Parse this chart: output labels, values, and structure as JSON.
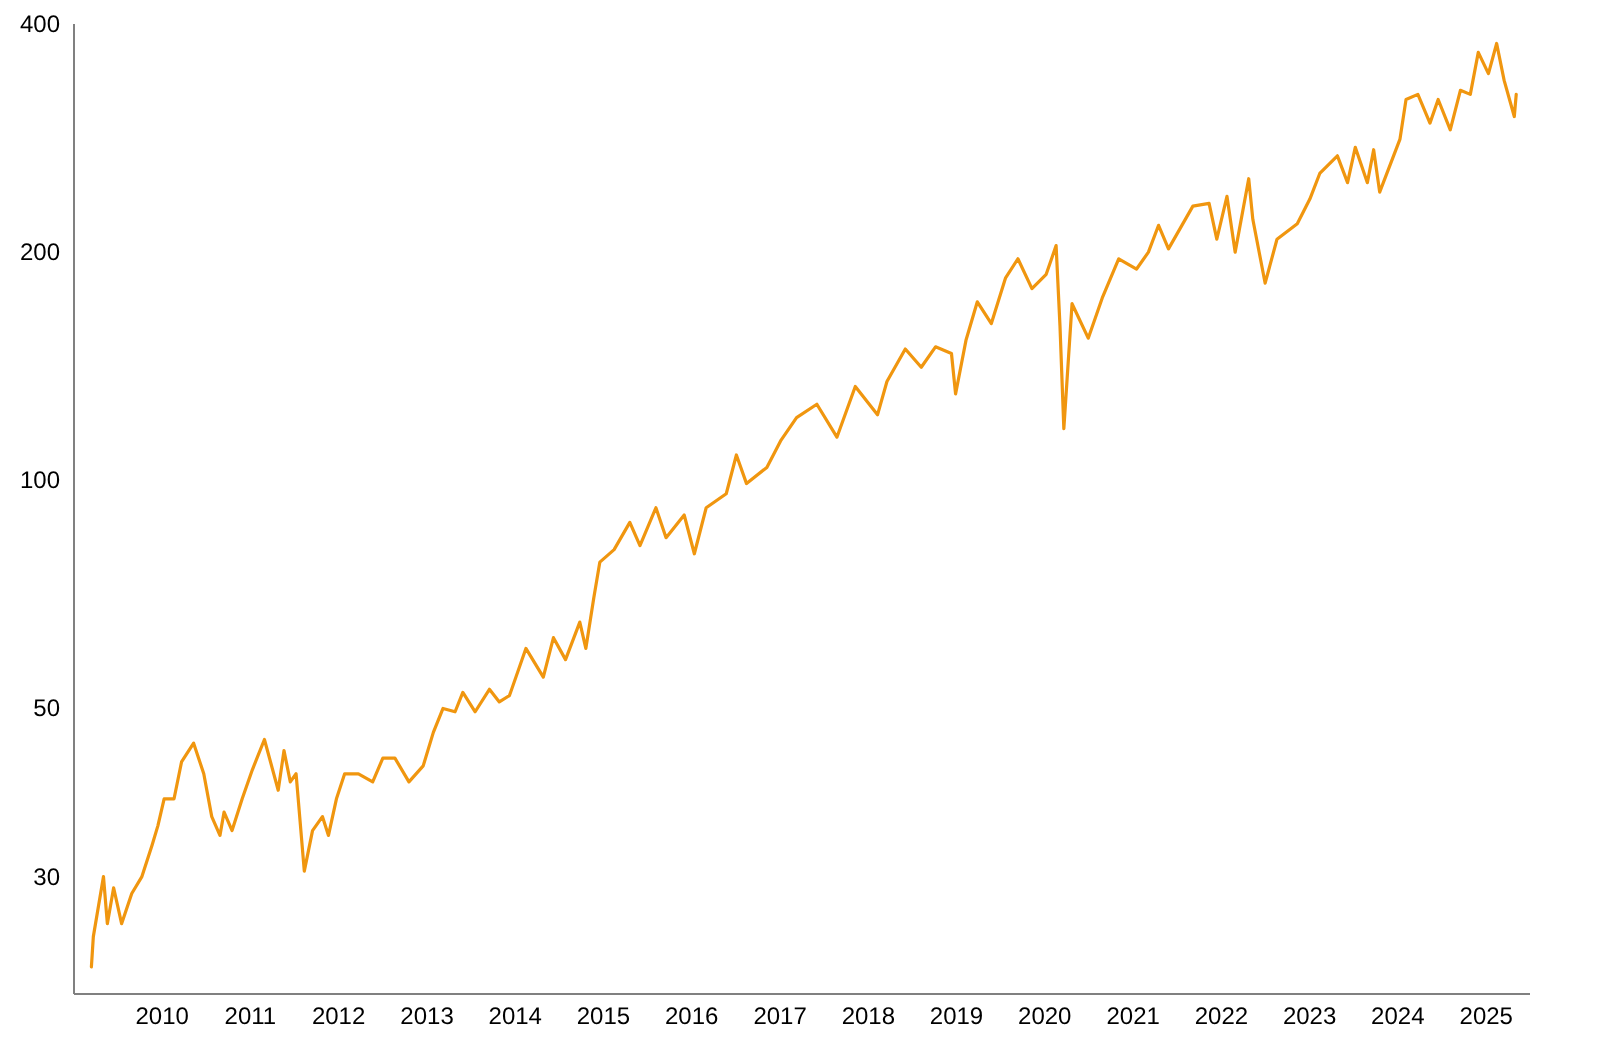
{
  "chart_data": {
    "type": "line",
    "log": "y",
    "grid": false,
    "xlim": [
      "2009-01",
      "2025-07"
    ],
    "ylim": [
      21,
      400
    ],
    "yticks": [
      30,
      50,
      100,
      200,
      400
    ],
    "xticks": [
      {
        "value": "2010",
        "label": "2010"
      },
      {
        "value": "2011",
        "label": "2011"
      },
      {
        "value": "2012",
        "label": "2012"
      },
      {
        "value": "2013",
        "label": "2013"
      },
      {
        "value": "2014",
        "label": "2014"
      },
      {
        "value": "2015",
        "label": "2015"
      },
      {
        "value": "2016",
        "label": "2016"
      },
      {
        "value": "2017",
        "label": "2017"
      },
      {
        "value": "2018",
        "label": "2018"
      },
      {
        "value": "2019",
        "label": "2019"
      },
      {
        "value": "2020",
        "label": "2020"
      },
      {
        "value": "2021",
        "label": "2021"
      },
      {
        "value": "2022",
        "label": "2022"
      },
      {
        "value": "2023",
        "label": "2023"
      },
      {
        "value": "2024",
        "label": "2024"
      },
      {
        "value": "2025",
        "label": "2025"
      }
    ],
    "x": [
      "2009-03-14",
      "2009-03-22",
      "2009-05-03",
      "2009-05-19",
      "2009-06-14",
      "2009-07-17",
      "2009-08-28",
      "2009-10-09",
      "2009-11-20",
      "2009-12-14",
      "2010-01-09",
      "2010-02-19",
      "2010-03-22",
      "2010-05-11",
      "2010-06-22",
      "2010-07-25",
      "2010-08-28",
      "2010-09-14",
      "2010-10-17",
      "2010-11-28",
      "2011-01-09",
      "2011-02-28",
      "2011-04-26",
      "2011-05-20",
      "2011-06-15",
      "2011-07-09",
      "2011-08-12",
      "2011-09-15",
      "2011-10-26",
      "2011-11-20",
      "2011-12-23",
      "2012-01-26",
      "2012-03-23",
      "2012-05-21",
      "2012-07-02",
      "2012-08-21",
      "2012-10-18",
      "2012-12-16",
      "2013-01-27",
      "2013-03-08",
      "2013-04-27",
      "2013-05-29",
      "2013-07-19",
      "2013-09-16",
      "2013-10-27",
      "2013-12-08",
      "2014-02-14",
      "2014-04-27",
      "2014-06-08",
      "2014-07-28",
      "2014-09-25",
      "2014-10-20",
      "2014-11-22",
      "2014-12-17",
      "2015-02-14",
      "2015-04-20",
      "2015-06-01",
      "2015-08-06",
      "2015-09-17",
      "2015-12-01",
      "2016-01-12",
      "2016-03-01",
      "2016-05-23",
      "2016-07-04",
      "2016-08-15",
      "2016-11-07",
      "2017-01-05",
      "2017-03-10",
      "2017-06-02",
      "2017-08-24",
      "2017-11-08",
      "2018-02-08",
      "2018-03-19",
      "2018-06-03",
      "2018-08-08",
      "2018-10-06",
      "2018-12-11",
      "2018-12-28",
      "2019-02-09",
      "2019-03-28",
      "2019-05-25",
      "2019-07-23",
      "2019-09-12",
      "2019-11-09",
      "2020-01-07",
      "2020-02-17",
      "2020-03-04",
      "2020-03-20",
      "2020-04-23",
      "2020-06-29",
      "2020-08-26",
      "2020-11-02",
      "2021-01-15",
      "2021-03-05",
      "2021-04-16",
      "2021-05-27",
      "2021-09-05",
      "2021-11-11",
      "2021-12-13",
      "2022-01-24",
      "2022-02-27",
      "2022-04-24",
      "2022-05-11",
      "2022-07-01",
      "2022-08-19",
      "2022-11-11",
      "2023-01-02",
      "2023-02-12",
      "2023-04-26",
      "2023-06-07",
      "2023-07-09",
      "2023-08-28",
      "2023-09-23",
      "2023-10-18",
      "2024-01-10",
      "2024-02-04",
      "2024-03-24",
      "2024-05-13",
      "2024-06-16",
      "2024-08-05",
      "2024-09-16",
      "2024-10-27",
      "2024-11-29",
      "2025-01-10",
      "2025-02-13",
      "2025-03-16",
      "2025-04-27",
      "2025-05-05"
    ],
    "series": [
      {
        "color": "#f0960f",
        "values": [
          22.8,
          25,
          30,
          26,
          29,
          26,
          28.5,
          30,
          33,
          35,
          38,
          38,
          42.5,
          45,
          41,
          36,
          34,
          36.5,
          34.5,
          38,
          41.5,
          45.5,
          39,
          44,
          40,
          41,
          30.5,
          34.5,
          36,
          34,
          38,
          41,
          41,
          40,
          43,
          43,
          40,
          42,
          46.5,
          50,
          49.5,
          52.5,
          49.5,
          53,
          51,
          52,
          60,
          55,
          62,
          58,
          65,
          60,
          70,
          78,
          81,
          88,
          82,
          92,
          84,
          90,
          80,
          92,
          96,
          108,
          99,
          104,
          113,
          121,
          126,
          114,
          133,
          122,
          135,
          149,
          141,
          150,
          147,
          130,
          153,
          172,
          161,
          185,
          196,
          179,
          187,
          204,
          160,
          117,
          171,
          154,
          174,
          196,
          190,
          200,
          217,
          202,
          230,
          232,
          208,
          237,
          200,
          250,
          221,
          182,
          208,
          218,
          235,
          254,
          268,
          247,
          275,
          247,
          273,
          240,
          282,
          318,
          323,
          296,
          318,
          290,
          327,
          323,
          367,
          344,
          377,
          337,
          302,
          323
        ]
      }
    ]
  }
}
